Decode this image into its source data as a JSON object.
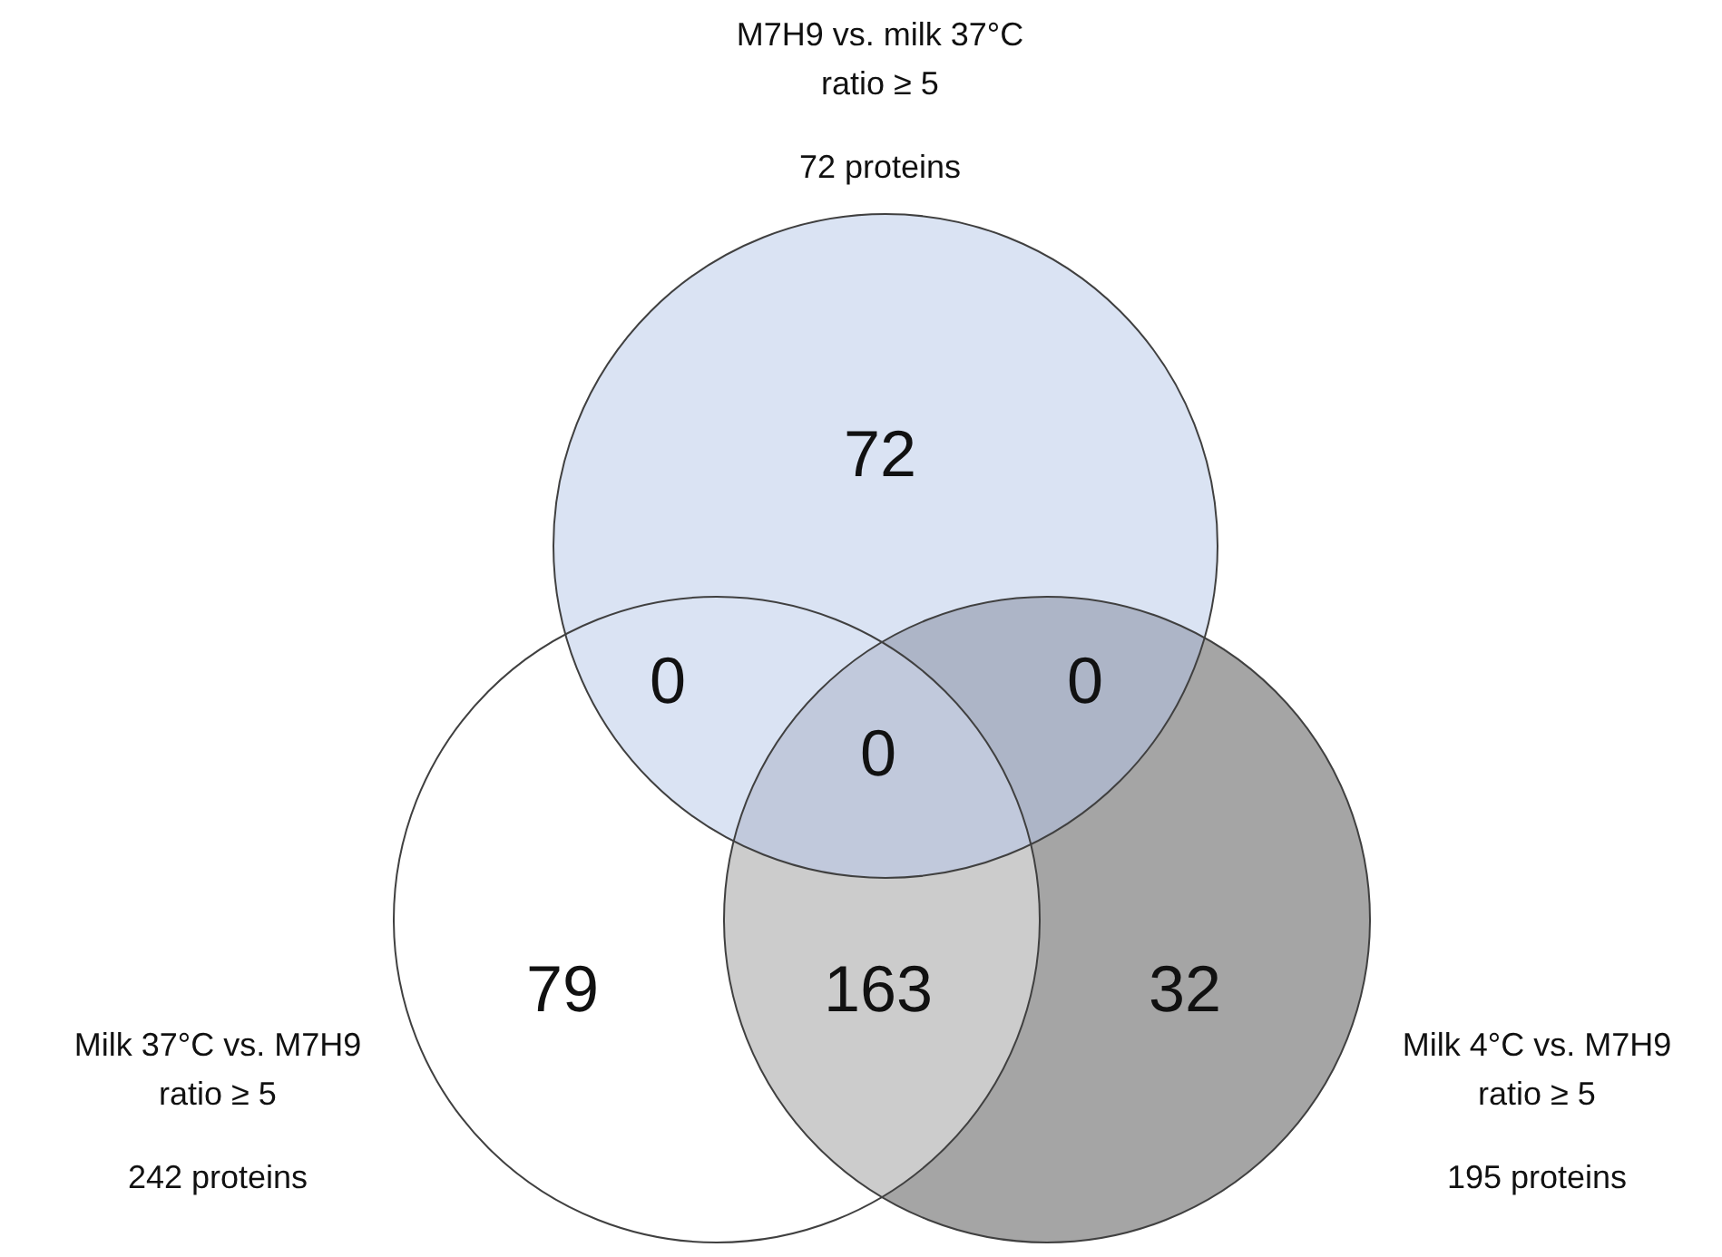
{
  "chart_data": {
    "type": "other",
    "categories": [
      null,
      null,
      null,
      null,
      null,
      null,
      null
    ],
    "values": [
      72,
      0,
      0,
      0,
      79,
      163,
      32
    ],
    "colors": [
      "#dae3f3",
      "#dae3f3",
      "#adb5c7",
      "#c1c9dc",
      "#ffffff",
      "#cccccc",
      "#a5a5a5"
    ],
    "data_labels": true,
    "annotations": [
      "M7H9 vs. milk 37°C\nratio ≥ 5",
      "72 proteins",
      "Milk 37°C vs. M7H9\nratio ≥ 5",
      "242 proteins",
      "Milk 4°C vs. M7H9\nratio ≥ 5",
      "195 proteins"
    ]
  }
}
